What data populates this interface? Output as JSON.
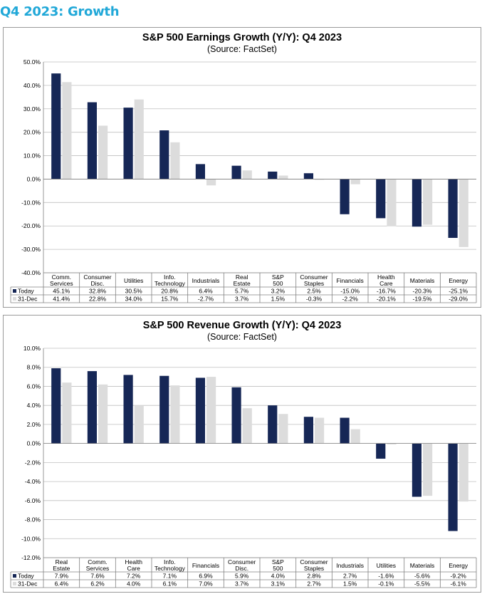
{
  "page": {
    "title": "Q4 2023: Growth"
  },
  "colors": {
    "title": "#21a8d8",
    "today": "#162756",
    "dec31": "#dcdcdc",
    "grid": "#bfbfbf"
  },
  "chart_data": [
    {
      "type": "bar",
      "title": "S&P 500 Earnings Growth (Y/Y): Q4 2023",
      "subtitle": "(Source: FactSet)",
      "xlabel": "",
      "ylabel": "",
      "ylim": [
        -40,
        50
      ],
      "ytick_step": 10,
      "ytick_labels": [
        "50.0%",
        "40.0%",
        "30.0%",
        "20.0%",
        "10.0%",
        "0.0%",
        "-10.0%",
        "-20.0%",
        "-30.0%",
        "-40.0%"
      ],
      "categories": [
        "Comm. Services",
        "Consumer Disc.",
        "Utilities",
        "Info. Technology",
        "Industrials",
        "Real Estate",
        "S&P 500",
        "Consumer Staples",
        "Financials",
        "Health Care",
        "Materials",
        "Energy"
      ],
      "series": [
        {
          "name": "Today",
          "values": [
            45.1,
            32.8,
            30.5,
            20.8,
            6.4,
            5.7,
            3.2,
            2.5,
            -15.0,
            -16.7,
            -20.3,
            -25.1
          ],
          "labels": [
            "45.1%",
            "32.8%",
            "30.5%",
            "20.8%",
            "6.4%",
            "5.7%",
            "3.2%",
            "2.5%",
            "-15.0%",
            "-16.7%",
            "-20.3%",
            "-25.1%"
          ]
        },
        {
          "name": "31-Dec",
          "values": [
            41.4,
            22.8,
            34.0,
            15.7,
            -2.7,
            3.7,
            1.5,
            -0.3,
            -2.2,
            -20.1,
            -19.5,
            -29.0
          ],
          "labels": [
            "41.4%",
            "22.8%",
            "34.0%",
            "15.7%",
            "-2.7%",
            "3.7%",
            "1.5%",
            "-0.3%",
            "-2.2%",
            "-20.1%",
            "-19.5%",
            "-29.0%"
          ]
        }
      ],
      "grid": true,
      "legend": "data table"
    },
    {
      "type": "bar",
      "title": "S&P 500 Revenue Growth (Y/Y): Q4 2023",
      "subtitle": "(Source: FactSet)",
      "xlabel": "",
      "ylabel": "",
      "ylim": [
        -12,
        10
      ],
      "ytick_step": 2,
      "ytick_labels": [
        "10.0%",
        "8.0%",
        "6.0%",
        "4.0%",
        "2.0%",
        "0.0%",
        "-2.0%",
        "-4.0%",
        "-6.0%",
        "-8.0%",
        "-10.0%",
        "-12.0%"
      ],
      "categories": [
        "Real Estate",
        "Comm. Services",
        "Health Care",
        "Info. Technology",
        "Financials",
        "Consumer Disc.",
        "S&P 500",
        "Consumer Staples",
        "Industrials",
        "Utilities",
        "Materials",
        "Energy"
      ],
      "series": [
        {
          "name": "Today",
          "values": [
            7.9,
            7.6,
            7.2,
            7.1,
            6.9,
            5.9,
            4.0,
            2.8,
            2.7,
            -1.6,
            -5.6,
            -9.2
          ],
          "labels": [
            "7.9%",
            "7.6%",
            "7.2%",
            "7.1%",
            "6.9%",
            "5.9%",
            "4.0%",
            "2.8%",
            "2.7%",
            "-1.6%",
            "-5.6%",
            "-9.2%"
          ]
        },
        {
          "name": "31-Dec",
          "values": [
            6.4,
            6.2,
            4.0,
            6.1,
            7.0,
            3.7,
            3.1,
            2.7,
            1.5,
            -0.1,
            -5.5,
            -6.1
          ],
          "labels": [
            "6.4%",
            "6.2%",
            "4.0%",
            "6.1%",
            "7.0%",
            "3.7%",
            "3.1%",
            "2.7%",
            "1.5%",
            "-0.1%",
            "-5.5%",
            "-6.1%"
          ]
        }
      ],
      "grid": true,
      "legend": "data table"
    }
  ]
}
